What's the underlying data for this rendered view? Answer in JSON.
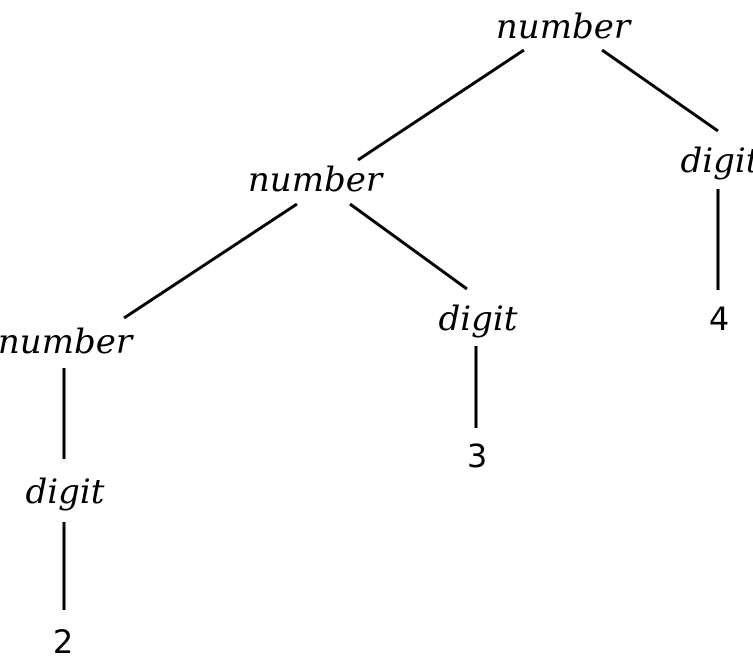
{
  "parse_tree": {
    "root": {
      "label": "number",
      "children": [
        {
          "label": "number",
          "children": [
            {
              "label": "number",
              "children": [
                {
                  "label": "digit",
                  "children": [
                    {
                      "label": "2"
                    }
                  ]
                }
              ]
            },
            {
              "label": "digit",
              "children": [
                {
                  "label": "3"
                }
              ]
            }
          ]
        },
        {
          "label": "digit",
          "children": [
            {
              "label": "4"
            }
          ]
        }
      ]
    }
  }
}
